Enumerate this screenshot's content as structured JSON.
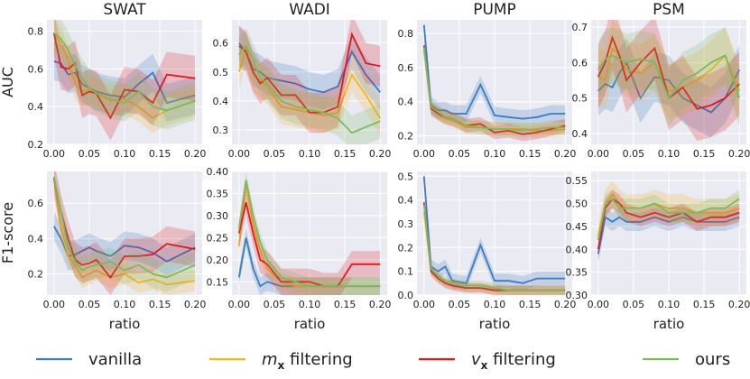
{
  "figure": {
    "column_titles": [
      "SWAT",
      "WADI",
      "PUMP",
      "PSM"
    ],
    "row_labels": [
      "AUC",
      "F1-score"
    ],
    "xlabel": "ratio"
  },
  "legend": [
    {
      "label": "vanilla",
      "color": "#3b7bbf"
    },
    {
      "label": "m",
      "subscript": "x",
      "suffix": " filtering",
      "color": "#f6b425"
    },
    {
      "label": "v",
      "subscript": "x",
      "suffix": " filtering",
      "color": "#e0191c"
    },
    {
      "label": "ours",
      "color": "#7db761"
    }
  ],
  "chart_data": [
    {
      "type": "line",
      "dataset": "SWAT",
      "metric": "AUC",
      "xlim": [
        -0.01,
        0.21
      ],
      "ylim": [
        0.2,
        0.86
      ],
      "xticks": [
        0.0,
        0.05,
        0.1,
        0.15,
        0.2
      ],
      "yticks": [
        0.2,
        0.4,
        0.6,
        0.8
      ],
      "x": [
        0.0,
        0.01,
        0.02,
        0.03,
        0.04,
        0.05,
        0.06,
        0.08,
        0.1,
        0.12,
        0.14,
        0.16,
        0.2
      ],
      "series": [
        {
          "name": "vanilla",
          "values": [
            0.64,
            0.63,
            0.57,
            0.58,
            0.52,
            0.5,
            0.48,
            0.46,
            0.45,
            0.52,
            0.58,
            0.42,
            0.46
          ],
          "spread": 0.1
        },
        {
          "name": "m filtering",
          "values": [
            0.78,
            0.74,
            0.65,
            0.52,
            0.48,
            0.49,
            0.47,
            0.43,
            0.44,
            0.4,
            0.34,
            0.38,
            0.43
          ],
          "spread": 0.08
        },
        {
          "name": "v filtering",
          "values": [
            0.79,
            0.61,
            0.6,
            0.63,
            0.46,
            0.48,
            0.47,
            0.34,
            0.49,
            0.48,
            0.42,
            0.57,
            0.55
          ],
          "spread": 0.12
        },
        {
          "name": "ours",
          "values": [
            0.79,
            0.76,
            0.7,
            0.62,
            0.55,
            0.5,
            0.47,
            0.44,
            0.42,
            0.48,
            0.4,
            0.38,
            0.43
          ],
          "spread": 0.1
        }
      ]
    },
    {
      "type": "line",
      "dataset": "WADI",
      "metric": "AUC",
      "xlim": [
        -0.01,
        0.21
      ],
      "ylim": [
        0.25,
        0.68
      ],
      "xticks": [
        0.0,
        0.05,
        0.1,
        0.15,
        0.2
      ],
      "yticks": [
        0.3,
        0.4,
        0.5,
        0.6
      ],
      "x": [
        0.0,
        0.01,
        0.02,
        0.03,
        0.04,
        0.06,
        0.08,
        0.1,
        0.12,
        0.14,
        0.16,
        0.18,
        0.2
      ],
      "series": [
        {
          "name": "vanilla",
          "values": [
            0.6,
            0.57,
            0.51,
            0.5,
            0.48,
            0.47,
            0.46,
            0.44,
            0.43,
            0.45,
            0.57,
            0.49,
            0.43
          ],
          "spread": 0.06
        },
        {
          "name": "m filtering",
          "values": [
            0.5,
            0.58,
            0.49,
            0.47,
            0.45,
            0.38,
            0.37,
            0.36,
            0.35,
            0.36,
            0.49,
            0.42,
            0.34
          ],
          "spread": 0.06
        },
        {
          "name": "v filtering",
          "values": [
            0.59,
            0.57,
            0.5,
            0.46,
            0.48,
            0.42,
            0.42,
            0.36,
            0.36,
            0.38,
            0.63,
            0.53,
            0.52
          ],
          "spread": 0.07
        },
        {
          "name": "ours",
          "values": [
            0.56,
            0.59,
            0.54,
            0.48,
            0.46,
            0.4,
            0.38,
            0.37,
            0.36,
            0.34,
            0.29,
            0.31,
            0.33
          ],
          "spread": 0.06
        }
      ]
    },
    {
      "type": "line",
      "dataset": "PUMP",
      "metric": "AUC",
      "xlim": [
        -0.01,
        0.21
      ],
      "ylim": [
        0.15,
        0.88
      ],
      "xticks": [
        0.0,
        0.05,
        0.1,
        0.15,
        0.2
      ],
      "yticks": [
        0.2,
        0.4,
        0.6,
        0.8
      ],
      "x": [
        0.0,
        0.01,
        0.02,
        0.03,
        0.04,
        0.06,
        0.08,
        0.1,
        0.12,
        0.14,
        0.16,
        0.18,
        0.2
      ],
      "series": [
        {
          "name": "vanilla",
          "values": [
            0.85,
            0.38,
            0.35,
            0.35,
            0.33,
            0.33,
            0.5,
            0.32,
            0.31,
            0.3,
            0.31,
            0.33,
            0.33
          ],
          "spread": 0.05
        },
        {
          "name": "m filtering",
          "values": [
            0.7,
            0.36,
            0.33,
            0.3,
            0.29,
            0.25,
            0.25,
            0.24,
            0.24,
            0.24,
            0.23,
            0.23,
            0.24
          ],
          "spread": 0.04
        },
        {
          "name": "v filtering",
          "values": [
            0.73,
            0.36,
            0.33,
            0.31,
            0.3,
            0.26,
            0.27,
            0.22,
            0.23,
            0.21,
            0.22,
            0.24,
            0.26
          ],
          "spread": 0.04
        },
        {
          "name": "ours",
          "values": [
            0.72,
            0.37,
            0.34,
            0.31,
            0.3,
            0.26,
            0.25,
            0.24,
            0.24,
            0.23,
            0.24,
            0.25,
            0.25
          ],
          "spread": 0.04
        }
      ]
    },
    {
      "type": "line",
      "dataset": "PSM",
      "metric": "AUC",
      "xlim": [
        -0.01,
        0.21
      ],
      "ylim": [
        0.37,
        0.72
      ],
      "xticks": [
        0.0,
        0.05,
        0.1,
        0.15,
        0.2
      ],
      "yticks": [
        0.4,
        0.5,
        0.6,
        0.7
      ],
      "x": [
        0.0,
        0.01,
        0.02,
        0.03,
        0.04,
        0.06,
        0.08,
        0.1,
        0.12,
        0.14,
        0.16,
        0.18,
        0.2
      ],
      "series": [
        {
          "name": "vanilla",
          "values": [
            0.52,
            0.54,
            0.53,
            0.57,
            0.6,
            0.5,
            0.56,
            0.55,
            0.5,
            0.48,
            0.46,
            0.5,
            0.58
          ],
          "spread": 0.07
        },
        {
          "name": "m filtering",
          "values": [
            0.56,
            0.55,
            0.64,
            0.62,
            0.58,
            0.57,
            0.6,
            0.52,
            0.53,
            0.55,
            0.58,
            0.62,
            0.52
          ],
          "spread": 0.08
        },
        {
          "name": "v filtering",
          "values": [
            0.56,
            0.6,
            0.67,
            0.62,
            0.55,
            0.6,
            0.64,
            0.5,
            0.53,
            0.47,
            0.48,
            0.5,
            0.54
          ],
          "spread": 0.09
        },
        {
          "name": "ours",
          "values": [
            0.58,
            0.61,
            0.62,
            0.61,
            0.6,
            0.61,
            0.6,
            0.5,
            0.55,
            0.57,
            0.6,
            0.62,
            0.5
          ],
          "spread": 0.08
        }
      ]
    },
    {
      "type": "line",
      "dataset": "SWAT",
      "metric": "F1-score",
      "xlim": [
        -0.01,
        0.21
      ],
      "ylim": [
        0.08,
        0.78
      ],
      "xticks": [
        0.0,
        0.05,
        0.1,
        0.15,
        0.2
      ],
      "yticks": [
        0.2,
        0.4,
        0.6
      ],
      "x": [
        0.0,
        0.01,
        0.02,
        0.03,
        0.04,
        0.05,
        0.06,
        0.08,
        0.1,
        0.12,
        0.14,
        0.16,
        0.2
      ],
      "series": [
        {
          "name": "vanilla",
          "values": [
            0.47,
            0.4,
            0.3,
            0.31,
            0.33,
            0.35,
            0.33,
            0.3,
            0.36,
            0.35,
            0.32,
            0.27,
            0.35
          ],
          "spread": 0.08
        },
        {
          "name": "m filtering",
          "values": [
            0.74,
            0.45,
            0.3,
            0.25,
            0.18,
            0.2,
            0.22,
            0.18,
            0.2,
            0.15,
            0.17,
            0.14,
            0.16
          ],
          "spread": 0.06
        },
        {
          "name": "v filtering",
          "values": [
            0.74,
            0.55,
            0.4,
            0.28,
            0.25,
            0.26,
            0.28,
            0.18,
            0.3,
            0.3,
            0.31,
            0.37,
            0.34
          ],
          "spread": 0.1
        },
        {
          "name": "ours",
          "values": [
            0.75,
            0.55,
            0.35,
            0.27,
            0.22,
            0.24,
            0.25,
            0.27,
            0.22,
            0.25,
            0.2,
            0.18,
            0.25
          ],
          "spread": 0.08
        }
      ]
    },
    {
      "type": "line",
      "dataset": "WADI",
      "metric": "F1-score",
      "xlim": [
        -0.01,
        0.21
      ],
      "ylim": [
        0.12,
        0.4
      ],
      "xticks": [
        0.0,
        0.05,
        0.1,
        0.15,
        0.2
      ],
      "yticks": [
        0.15,
        0.2,
        0.25,
        0.3,
        0.35,
        0.4
      ],
      "x": [
        0.0,
        0.01,
        0.02,
        0.03,
        0.04,
        0.06,
        0.08,
        0.1,
        0.12,
        0.14,
        0.16,
        0.18,
        0.2
      ],
      "series": [
        {
          "name": "vanilla",
          "values": [
            0.16,
            0.25,
            0.18,
            0.14,
            0.15,
            0.14,
            0.14,
            0.14,
            0.14,
            0.14,
            0.14,
            0.14,
            0.14
          ],
          "spread": 0.02
        },
        {
          "name": "m filtering",
          "values": [
            0.23,
            0.37,
            0.28,
            0.22,
            0.18,
            0.15,
            0.14,
            0.14,
            0.14,
            0.14,
            0.14,
            0.14,
            0.14
          ],
          "spread": 0.02
        },
        {
          "name": "v filtering",
          "values": [
            0.26,
            0.33,
            0.26,
            0.2,
            0.19,
            0.15,
            0.15,
            0.15,
            0.14,
            0.14,
            0.19,
            0.19,
            0.19
          ],
          "spread": 0.03
        },
        {
          "name": "ours",
          "values": [
            0.27,
            0.38,
            0.3,
            0.24,
            0.2,
            0.16,
            0.15,
            0.14,
            0.14,
            0.14,
            0.14,
            0.14,
            0.14
          ],
          "spread": 0.02
        }
      ]
    },
    {
      "type": "line",
      "dataset": "PUMP",
      "metric": "F1-score",
      "xlim": [
        -0.01,
        0.21
      ],
      "ylim": [
        0.0,
        0.52
      ],
      "xticks": [
        0.0,
        0.05,
        0.1,
        0.15,
        0.2
      ],
      "yticks": [
        0.0,
        0.1,
        0.2,
        0.3,
        0.4,
        0.5
      ],
      "x": [
        0.0,
        0.01,
        0.02,
        0.03,
        0.04,
        0.06,
        0.08,
        0.1,
        0.12,
        0.14,
        0.16,
        0.18,
        0.2
      ],
      "series": [
        {
          "name": "vanilla",
          "values": [
            0.5,
            0.12,
            0.1,
            0.12,
            0.06,
            0.05,
            0.21,
            0.06,
            0.06,
            0.05,
            0.07,
            0.07,
            0.07
          ],
          "spread": 0.03
        },
        {
          "name": "m filtering",
          "values": [
            0.35,
            0.1,
            0.07,
            0.05,
            0.04,
            0.03,
            0.03,
            0.02,
            0.02,
            0.02,
            0.02,
            0.02,
            0.02
          ],
          "spread": 0.02
        },
        {
          "name": "v filtering",
          "values": [
            0.39,
            0.1,
            0.07,
            0.05,
            0.04,
            0.03,
            0.03,
            0.02,
            0.02,
            0.02,
            0.02,
            0.02,
            0.02
          ],
          "spread": 0.02
        },
        {
          "name": "ours",
          "values": [
            0.38,
            0.11,
            0.08,
            0.06,
            0.05,
            0.04,
            0.04,
            0.03,
            0.02,
            0.02,
            0.02,
            0.02,
            0.02
          ],
          "spread": 0.02
        }
      ]
    },
    {
      "type": "line",
      "dataset": "PSM",
      "metric": "F1-score",
      "xlim": [
        -0.01,
        0.21
      ],
      "ylim": [
        0.3,
        0.57
      ],
      "xticks": [
        0.0,
        0.05,
        0.1,
        0.15,
        0.2
      ],
      "yticks": [
        0.3,
        0.35,
        0.4,
        0.45,
        0.5,
        0.55
      ],
      "x": [
        0.0,
        0.01,
        0.02,
        0.03,
        0.04,
        0.06,
        0.08,
        0.1,
        0.12,
        0.14,
        0.16,
        0.18,
        0.2
      ],
      "series": [
        {
          "name": "vanilla",
          "values": [
            0.39,
            0.47,
            0.46,
            0.47,
            0.46,
            0.46,
            0.47,
            0.46,
            0.47,
            0.46,
            0.46,
            0.46,
            0.47
          ],
          "spread": 0.02
        },
        {
          "name": "m filtering",
          "values": [
            0.43,
            0.5,
            0.52,
            0.5,
            0.49,
            0.49,
            0.5,
            0.49,
            0.49,
            0.48,
            0.48,
            0.48,
            0.49
          ],
          "spread": 0.03
        },
        {
          "name": "v filtering",
          "values": [
            0.4,
            0.49,
            0.51,
            0.5,
            0.48,
            0.47,
            0.48,
            0.47,
            0.48,
            0.46,
            0.47,
            0.47,
            0.48
          ],
          "spread": 0.02
        },
        {
          "name": "ours",
          "values": [
            0.42,
            0.5,
            0.51,
            0.49,
            0.49,
            0.49,
            0.5,
            0.48,
            0.48,
            0.48,
            0.49,
            0.49,
            0.51
          ],
          "spread": 0.02
        }
      ]
    }
  ]
}
